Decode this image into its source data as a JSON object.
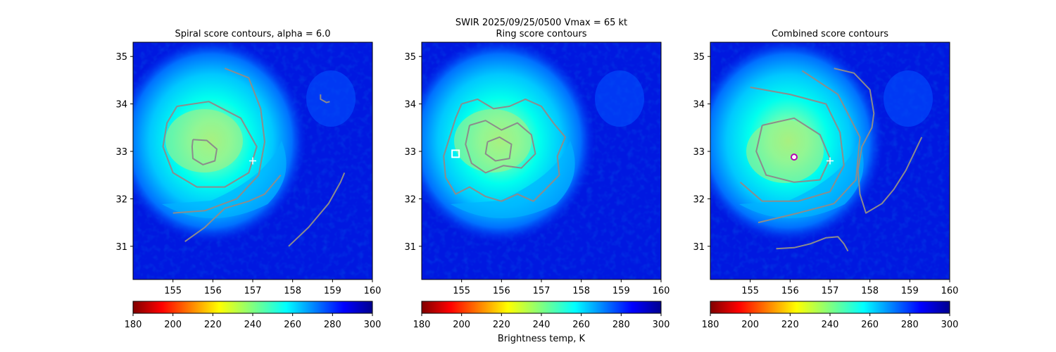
{
  "suptitle": "SWIR  2025/09/25/0500    Vmax = 65 kt",
  "colorbar": {
    "label": "Brightness temp, K",
    "range": [
      180,
      300
    ],
    "ticks": [
      180,
      200,
      220,
      240,
      260,
      280,
      300
    ],
    "colormap": "jet (reversed)"
  },
  "axes": {
    "xlim": [
      154.0,
      160.0
    ],
    "ylim": [
      30.3,
      35.3
    ],
    "xticks": [
      155,
      156,
      157,
      158,
      159,
      160
    ],
    "yticks": [
      31,
      32,
      33,
      34,
      35
    ]
  },
  "colors": {
    "contour": "#8c8c8c",
    "best_track_marker": "#ffffff",
    "ring_center_marker": "#ffffff",
    "combined_center_marker": "#b400b4"
  },
  "chart_data": [
    {
      "type": "heatmap",
      "title": "Spiral score contours, alpha =  6.0",
      "eye_center": [
        155.85,
        32.95
      ],
      "best_track_center": [
        157.0,
        32.8
      ],
      "contours": [
        [
          [
            155.5,
            33.25
          ],
          [
            155.85,
            33.23
          ],
          [
            156.1,
            33.05
          ],
          [
            156.05,
            32.8
          ],
          [
            155.75,
            32.72
          ],
          [
            155.5,
            32.85
          ],
          [
            155.48,
            33.1
          ],
          [
            155.5,
            33.25
          ]
        ],
        [
          [
            155.1,
            33.95
          ],
          [
            155.9,
            34.05
          ],
          [
            156.7,
            33.7
          ],
          [
            157.1,
            33.1
          ],
          [
            156.9,
            32.55
          ],
          [
            156.3,
            32.25
          ],
          [
            155.6,
            32.25
          ],
          [
            155.0,
            32.55
          ],
          [
            154.75,
            33.1
          ],
          [
            154.85,
            33.6
          ],
          [
            155.1,
            33.95
          ]
        ],
        [
          [
            156.3,
            34.75
          ],
          [
            156.9,
            34.55
          ],
          [
            157.2,
            33.9
          ],
          [
            157.3,
            33.2
          ],
          [
            157.15,
            32.5
          ],
          [
            156.6,
            32.0
          ],
          [
            155.8,
            31.75
          ],
          [
            155.0,
            31.7
          ]
        ],
        [
          [
            155.3,
            31.1
          ],
          [
            155.8,
            31.4
          ],
          [
            156.3,
            31.8
          ],
          [
            156.9,
            31.95
          ],
          [
            157.3,
            32.1
          ],
          [
            157.7,
            32.5
          ]
        ],
        [
          [
            157.9,
            31.0
          ],
          [
            158.4,
            31.4
          ],
          [
            158.9,
            31.9
          ],
          [
            159.2,
            32.35
          ],
          [
            159.3,
            32.55
          ]
        ],
        [
          [
            158.7,
            34.2
          ],
          [
            158.7,
            34.1
          ],
          [
            158.85,
            34.03
          ],
          [
            158.93,
            34.05
          ]
        ]
      ]
    },
    {
      "type": "heatmap",
      "title": "Ring score contours",
      "eye_center": [
        155.9,
        33.0
      ],
      "ring_center": [
        154.85,
        32.95
      ],
      "contours": [
        [
          [
            155.0,
            34.0
          ],
          [
            155.4,
            34.1
          ],
          [
            155.8,
            33.9
          ],
          [
            156.2,
            33.95
          ],
          [
            156.6,
            34.1
          ],
          [
            157.0,
            33.95
          ],
          [
            157.3,
            33.6
          ],
          [
            157.6,
            33.3
          ],
          [
            157.4,
            32.9
          ],
          [
            157.45,
            32.5
          ],
          [
            157.1,
            32.2
          ],
          [
            156.8,
            31.95
          ],
          [
            156.4,
            32.1
          ],
          [
            156.0,
            31.95
          ],
          [
            155.6,
            32.05
          ],
          [
            155.2,
            32.25
          ],
          [
            154.85,
            32.1
          ],
          [
            154.6,
            32.45
          ],
          [
            154.55,
            32.9
          ],
          [
            154.7,
            33.3
          ],
          [
            154.85,
            33.7
          ],
          [
            155.0,
            34.0
          ]
        ],
        [
          [
            155.2,
            33.55
          ],
          [
            155.6,
            33.65
          ],
          [
            156.0,
            33.45
          ],
          [
            156.4,
            33.6
          ],
          [
            156.75,
            33.35
          ],
          [
            156.85,
            32.95
          ],
          [
            156.5,
            32.65
          ],
          [
            156.05,
            32.7
          ],
          [
            155.6,
            32.55
          ],
          [
            155.25,
            32.75
          ],
          [
            155.1,
            33.15
          ],
          [
            155.2,
            33.55
          ]
        ],
        [
          [
            155.65,
            33.2
          ],
          [
            155.95,
            33.3
          ],
          [
            156.25,
            33.15
          ],
          [
            156.2,
            32.85
          ],
          [
            155.85,
            32.8
          ],
          [
            155.6,
            32.95
          ],
          [
            155.65,
            33.2
          ]
        ]
      ]
    },
    {
      "type": "heatmap",
      "title": "Combined score contours",
      "eye_center": [
        156.1,
        32.88
      ],
      "best_track_center": [
        157.0,
        32.8
      ],
      "combined_center": [
        156.1,
        32.88
      ],
      "contours": [
        [
          [
            155.3,
            33.55
          ],
          [
            156.1,
            33.7
          ],
          [
            156.75,
            33.35
          ],
          [
            157.0,
            32.85
          ],
          [
            156.75,
            32.4
          ],
          [
            156.1,
            32.35
          ],
          [
            155.4,
            32.5
          ],
          [
            155.15,
            33.0
          ],
          [
            155.3,
            33.55
          ]
        ],
        [
          [
            155.0,
            34.35
          ],
          [
            156.0,
            34.2
          ],
          [
            156.9,
            34.0
          ],
          [
            157.25,
            33.4
          ],
          [
            157.35,
            32.7
          ],
          [
            157.0,
            32.15
          ],
          [
            156.2,
            31.95
          ],
          [
            155.3,
            31.95
          ],
          [
            154.75,
            32.35
          ]
        ],
        [
          [
            156.3,
            34.7
          ],
          [
            157.2,
            34.2
          ],
          [
            157.75,
            33.3
          ],
          [
            157.65,
            32.4
          ],
          [
            157.1,
            31.9
          ],
          [
            156.2,
            31.7
          ],
          [
            155.2,
            31.5
          ]
        ],
        [
          [
            157.1,
            34.75
          ],
          [
            157.6,
            34.65
          ],
          [
            158.0,
            34.3
          ],
          [
            158.1,
            33.8
          ],
          [
            158.05,
            33.5
          ],
          [
            157.8,
            33.1
          ],
          [
            157.7,
            32.6
          ],
          [
            157.75,
            32.1
          ],
          [
            157.9,
            31.7
          ],
          [
            158.3,
            31.9
          ],
          [
            158.6,
            32.2
          ],
          [
            158.9,
            32.6
          ],
          [
            159.1,
            32.95
          ],
          [
            159.3,
            33.3
          ]
        ],
        [
          [
            155.65,
            30.95
          ],
          [
            156.1,
            30.97
          ],
          [
            156.5,
            31.05
          ],
          [
            156.9,
            31.18
          ],
          [
            157.2,
            31.2
          ],
          [
            157.35,
            31.05
          ],
          [
            157.45,
            30.9
          ]
        ]
      ]
    }
  ]
}
